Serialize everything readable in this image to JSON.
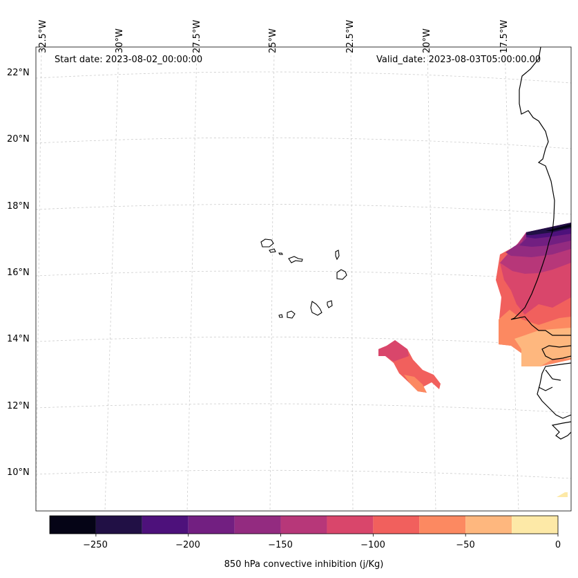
{
  "header": {
    "start_date": "Start date: 2023-08-02_00:00:00",
    "valid_date": "Valid_date: 2023-08-03T05:00:00.00"
  },
  "longitude_labels": [
    "32.5°W",
    "30°W",
    "27.5°W",
    "25°W",
    "22.5°W",
    "20°W",
    "17.5°W"
  ],
  "latitude_labels": [
    "22°N",
    "20°N",
    "18°N",
    "16°N",
    "14°N",
    "12°N",
    "10°N"
  ],
  "colorbar": {
    "title": "850 hPa convective inhibition (j/Kg)",
    "tick_labels": [
      "−250",
      "−200",
      "−150",
      "−100",
      "−50",
      "0"
    ],
    "levels": [
      -275,
      -250,
      -225,
      -200,
      -175,
      -150,
      -125,
      -100,
      -75,
      -50,
      -25,
      0
    ],
    "colors": [
      "#050416",
      "#211045",
      "#4d117b",
      "#721f81",
      "#932b80",
      "#b73779",
      "#d9466b",
      "#f1605d",
      "#fc8961",
      "#feb77e",
      "#fde9a7"
    ]
  },
  "colors": {
    "coastline": "#000000",
    "gridline": "#cccccc"
  }
}
